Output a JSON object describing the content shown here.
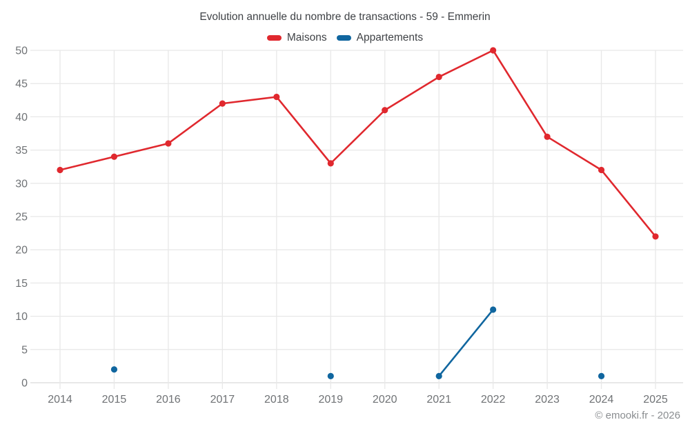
{
  "title": "Evolution annuelle du nombre de transactions - 59 - Emmerin",
  "legend": {
    "items": [
      {
        "label": "Maisons",
        "color": "#e0282e"
      },
      {
        "label": "Appartements",
        "color": "#10669f"
      }
    ]
  },
  "footer": {
    "credit": "© emooki.fr - 2026"
  },
  "colors": {
    "maisons": "#e0282e",
    "appartements": "#10669f",
    "grid": "#e8e8e8",
    "axis_line": "#d9d9d9",
    "tick_label": "#6f7275",
    "title_text": "#3f4246"
  },
  "chart_data": {
    "type": "line",
    "title": "Evolution annuelle du nombre de transactions - 59 - Emmerin",
    "x": [
      2014,
      2015,
      2016,
      2017,
      2018,
      2019,
      2020,
      2021,
      2022,
      2023,
      2024,
      2025
    ],
    "series": [
      {
        "name": "Maisons",
        "color": "#e0282e",
        "values": [
          32,
          34,
          36,
          42,
          43,
          33,
          41,
          46,
          50,
          37,
          32,
          22
        ]
      },
      {
        "name": "Appartements",
        "color": "#10669f",
        "values": [
          null,
          2,
          null,
          null,
          null,
          1,
          null,
          1,
          11,
          null,
          1,
          null
        ]
      }
    ],
    "xlabel": "",
    "ylabel": "",
    "ylim": [
      0,
      50
    ],
    "ytick_step": 5,
    "grid": true,
    "legend_position": "top"
  }
}
